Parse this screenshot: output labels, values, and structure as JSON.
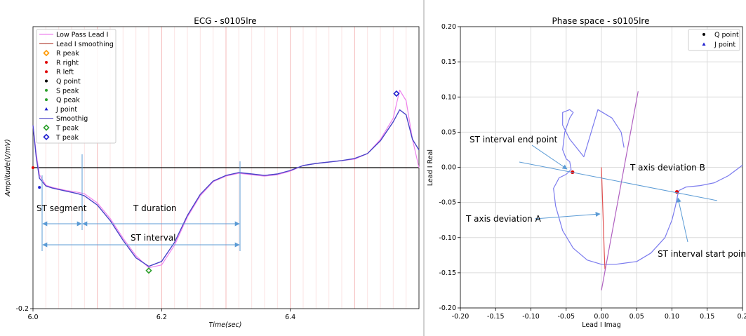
{
  "chart_data": [
    {
      "type": "line",
      "title": "ECG - s0105lre",
      "xlabel": "Time(sec)",
      "ylabel": "Amplitude(V/mV)",
      "xlim": [
        6.0,
        6.6
      ],
      "ylim": [
        -0.2,
        0.2
      ],
      "x_ticks": [
        "6.0",
        "6.2",
        "6.4"
      ],
      "y_ticks": [
        "-0.2"
      ],
      "grid": "vertical lines every 0.02 s (light pink)",
      "legend_position": "top-left",
      "colors": {
        "low_pass": "#ee82ee",
        "lead_smoothing": "#b03a2e",
        "smoothig": "#4b44c8",
        "baseline": "#000000",
        "annotation": "#5b9bd5"
      },
      "legend": [
        {
          "label": "Low Pass Lead I",
          "marker": "line",
          "color": "#ee82ee"
        },
        {
          "label": "Lead I smoothing",
          "marker": "line",
          "color": "#b03a2e"
        },
        {
          "label": "R peak",
          "marker": "diamond",
          "color": "#ff9900"
        },
        {
          "label": "R right",
          "marker": "dot",
          "color": "#e00000"
        },
        {
          "label": "R left",
          "marker": "dot",
          "color": "#e00000"
        },
        {
          "label": "Q point",
          "marker": "dot",
          "color": "#000000"
        },
        {
          "label": "S peak",
          "marker": "dot",
          "color": "#2ca02c"
        },
        {
          "label": "Q peak",
          "marker": "dot",
          "color": "#2ca02c"
        },
        {
          "label": "J point",
          "marker": "triangle",
          "color": "#1f1fcf"
        },
        {
          "label": "Smoothig",
          "marker": "line",
          "color": "#4b44c8"
        },
        {
          "label": "T peak",
          "marker": "diamond",
          "color": "#2ca02c"
        },
        {
          "label": "T peak",
          "marker": "diamond",
          "color": "#1f1fcf"
        }
      ],
      "series": [
        {
          "name": "Low Pass Lead I",
          "x": [
            6.0,
            6.005,
            6.01,
            6.02,
            6.03,
            6.05,
            6.07,
            6.08,
            6.1,
            6.12,
            6.14,
            6.16,
            6.18,
            6.2,
            6.22,
            6.24,
            6.26,
            6.28,
            6.3,
            6.32,
            6.34,
            6.36,
            6.38,
            6.4,
            6.42,
            6.44,
            6.46,
            6.48,
            6.5,
            6.52,
            6.54,
            6.56,
            6.57,
            6.58,
            6.59,
            6.6
          ],
          "y": [
            0.06,
            0.02,
            -0.01,
            -0.025,
            -0.028,
            -0.032,
            -0.035,
            -0.037,
            -0.05,
            -0.072,
            -0.1,
            -0.125,
            -0.142,
            -0.138,
            -0.11,
            -0.07,
            -0.04,
            -0.02,
            -0.012,
            -0.008,
            -0.01,
            -0.012,
            -0.01,
            -0.005,
            0.003,
            0.006,
            0.008,
            0.01,
            0.012,
            0.02,
            0.04,
            0.07,
            0.11,
            0.095,
            0.04,
            0.0
          ]
        },
        {
          "name": "Smoothig",
          "x": [
            6.0,
            6.005,
            6.01,
            6.02,
            6.03,
            6.05,
            6.07,
            6.08,
            6.1,
            6.12,
            6.14,
            6.16,
            6.18,
            6.2,
            6.22,
            6.24,
            6.26,
            6.28,
            6.3,
            6.32,
            6.34,
            6.36,
            6.38,
            6.4,
            6.42,
            6.44,
            6.46,
            6.48,
            6.5,
            6.52,
            6.54,
            6.56,
            6.57,
            6.58,
            6.59,
            6.6
          ],
          "y": [
            0.06,
            0.015,
            -0.015,
            -0.026,
            -0.029,
            -0.033,
            -0.037,
            -0.04,
            -0.053,
            -0.075,
            -0.103,
            -0.128,
            -0.14,
            -0.133,
            -0.106,
            -0.068,
            -0.038,
            -0.019,
            -0.011,
            -0.007,
            -0.009,
            -0.011,
            -0.009,
            -0.004,
            0.003,
            0.006,
            0.008,
            0.01,
            0.013,
            0.02,
            0.038,
            0.065,
            0.082,
            0.075,
            0.04,
            0.025
          ]
        }
      ],
      "points": [
        {
          "name": "J point",
          "x": 6.01,
          "y": -0.028,
          "color": "#1f1fcf"
        },
        {
          "name": "T peak",
          "x": 6.18,
          "y": -0.146,
          "color": "#2ca02c"
        },
        {
          "name": "T peak",
          "x": 6.565,
          "y": 0.105,
          "color": "#1f1fcf"
        },
        {
          "name": "R right",
          "x": 6.0,
          "y": 0.0,
          "color": "#e00000"
        }
      ],
      "annotations": {
        "st_segment": "ST segment",
        "t_duration": "T duration",
        "st_interval": "ST interval"
      }
    },
    {
      "type": "scatter",
      "title": "Phase space - s0105lre",
      "xlabel": "Lead I Imag",
      "ylabel": "Lead I Real",
      "xlim": [
        -0.2,
        0.2
      ],
      "ylim": [
        -0.2,
        0.2
      ],
      "x_ticks": [
        "-0.20",
        "-0.15",
        "-0.10",
        "-0.05",
        "0.00",
        "0.05",
        "0.10",
        "0.15",
        "0.2"
      ],
      "y_ticks": [
        "0.20",
        "0.15",
        "0.10",
        "0.05",
        "0.00",
        "-0.05",
        "-0.10",
        "-0.15",
        "-0.20"
      ],
      "grid": true,
      "legend_position": "top-right",
      "legend": [
        {
          "label": "Q point",
          "marker": "dot",
          "color": "#000000"
        },
        {
          "label": "J point",
          "marker": "triangle",
          "color": "#1f1fcf"
        }
      ],
      "series": [
        {
          "name": "",
          "color": "#7b7bee",
          "x": [
            0.2,
            0.18,
            0.16,
            0.14,
            0.12,
            0.11,
            0.108,
            0.105,
            0.1,
            0.09,
            0.07,
            0.05,
            0.02,
            0.0,
            -0.02,
            -0.04,
            -0.055,
            -0.065,
            -0.068,
            -0.06,
            -0.05,
            -0.043,
            -0.045,
            -0.05,
            -0.055,
            -0.052,
            -0.045,
            -0.04,
            -0.045,
            -0.055,
            -0.055,
            -0.045,
            -0.025,
            -0.005,
            0.015,
            0.028,
            0.032
          ],
          "y": [
            0.003,
            -0.012,
            -0.022,
            -0.026,
            -0.028,
            -0.033,
            -0.04,
            -0.055,
            -0.075,
            -0.1,
            -0.122,
            -0.134,
            -0.138,
            -0.138,
            -0.132,
            -0.115,
            -0.09,
            -0.055,
            -0.03,
            -0.015,
            -0.01,
            -0.003,
            0.008,
            0.012,
            0.025,
            0.05,
            0.07,
            0.078,
            0.082,
            0.078,
            0.06,
            0.04,
            0.015,
            0.082,
            0.07,
            0.05,
            0.028
          ]
        },
        {
          "name": "",
          "color": "#e05050",
          "x": [
            0.0,
            0.001,
            0.002,
            0.003,
            0.004,
            0.005
          ],
          "y": [
            0.0,
            -0.03,
            -0.06,
            -0.09,
            -0.12,
            -0.145
          ]
        },
        {
          "name": "",
          "color": "#b060c0",
          "x": [
            0.0,
            0.052
          ],
          "y": [
            -0.175,
            0.108
          ]
        }
      ],
      "points": [
        {
          "name": "point",
          "x": -0.041,
          "y": -0.007,
          "color": "#e00000"
        },
        {
          "name": "point",
          "x": 0.107,
          "y": -0.035,
          "color": "#e00000"
        }
      ],
      "annotations": {
        "st_end": "ST interval end point",
        "t_axis_b": "T axis deviation B",
        "t_axis_a": "T axis deviation A",
        "st_start": "ST interval start point"
      }
    }
  ]
}
